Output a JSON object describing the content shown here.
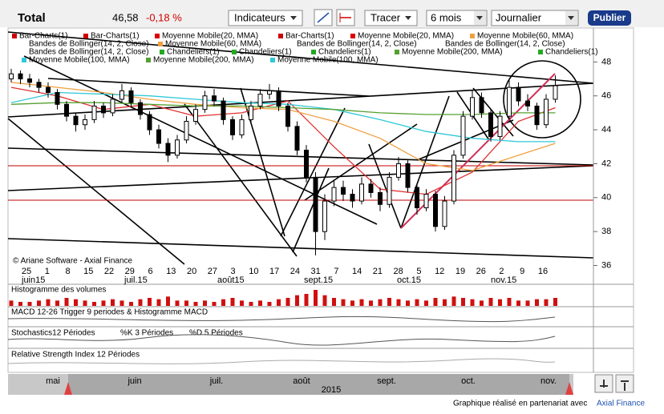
{
  "header": {
    "title": "Total",
    "price": "46,58",
    "change": "-0,18 %",
    "indicators": "Indicateurs",
    "draw": "Tracer",
    "period": "6 mois",
    "interval": "Journalier",
    "publish": "Publier"
  },
  "legend": [
    [
      {
        "text": "Bar-Charts(1)",
        "color": "#cc0000"
      },
      {
        "text": "Bar-Charts(1)",
        "color": "#cc0000"
      },
      {
        "text": "Moyenne Mobile(20, MMA)",
        "color": "#dd0000"
      },
      {
        "text": "Bar-Charts(1)",
        "color": "#cc0000"
      },
      {
        "text": "Moyenne Mobile(20, MMA)",
        "color": "#dd0000"
      },
      {
        "text": "Moyenne Mobile(60, MMA)",
        "color": "#f0a040"
      }
    ],
    [
      {
        "text": "Bandes de Bollinger(14, 2, Close)"
      },
      {
        "text": "Moyenne Mobile(60, MMA)",
        "color": "#f0a040"
      },
      {
        "text": "Bandes de Bollinger(14, 2, Close)"
      },
      {
        "text": "Bandes de Bollinger(14, 2, Close)"
      }
    ],
    [
      {
        "text": "Bandes de Bollinger(14, 2, Close)"
      },
      {
        "text": "Chandeliers(1)",
        "color": "#22aa22"
      },
      {
        "text": "Chandeliers(1)",
        "color": "#22aa22"
      },
      {
        "text": "Chandeliers(1)",
        "color": "#22aa22"
      },
      {
        "text": "Moyenne Mobile(200, MMA)",
        "color": "#55a030"
      },
      {
        "text": "Chandeliers(1)",
        "color": "#22aa22"
      }
    ],
    [
      {
        "text": "Moyenne Mobile(100, MMA)",
        "color": "#30c8d8"
      },
      {
        "text": "Moyenne Mobile(200, MMA)",
        "color": "#55a030"
      },
      {
        "text": "Moyenne Mobile(100, MMA)",
        "color": "#30c8d8"
      }
    ]
  ],
  "chart_data": {
    "type": "candlestick",
    "ylim": [
      35.6,
      50
    ],
    "yticks": [
      36,
      38,
      40,
      42,
      44,
      46,
      48
    ],
    "x_labels": [
      "25",
      "1",
      "8",
      "15",
      "22",
      "29",
      "6",
      "13",
      "20",
      "27",
      "3",
      "10",
      "17",
      "24",
      "31",
      "7",
      "14",
      "21",
      "28",
      "5",
      "12",
      "19",
      "26",
      "2",
      "9",
      "16"
    ],
    "month_labels": [
      "juin15",
      "juil.15",
      "août15",
      "sept.15",
      "oct.15",
      "nov.15"
    ],
    "candles": [
      [
        47.0,
        47.6,
        46.8,
        47.3
      ],
      [
        47.3,
        47.5,
        46.7,
        47.0
      ],
      [
        47.0,
        47.3,
        46.5,
        46.8
      ],
      [
        46.8,
        47.0,
        46.2,
        46.5
      ],
      [
        46.5,
        46.8,
        45.9,
        46.2
      ],
      [
        46.2,
        46.4,
        45.2,
        45.5
      ],
      [
        45.5,
        45.7,
        44.5,
        44.8
      ],
      [
        44.8,
        45.0,
        43.9,
        44.3
      ],
      [
        44.3,
        44.9,
        44.0,
        44.6
      ],
      [
        44.6,
        45.7,
        44.4,
        45.4
      ],
      [
        45.4,
        45.6,
        44.7,
        45.0
      ],
      [
        45.0,
        46.1,
        44.8,
        45.8
      ],
      [
        45.8,
        46.7,
        45.6,
        46.3
      ],
      [
        46.3,
        46.5,
        45.3,
        45.6
      ],
      [
        45.6,
        45.8,
        44.6,
        44.9
      ],
      [
        44.9,
        45.1,
        43.7,
        44.0
      ],
      [
        44.0,
        44.3,
        42.9,
        43.2
      ],
      [
        43.2,
        43.5,
        42.1,
        42.5
      ],
      [
        42.5,
        43.7,
        42.3,
        43.4
      ],
      [
        43.4,
        44.8,
        43.2,
        44.5
      ],
      [
        44.5,
        45.5,
        44.3,
        45.2
      ],
      [
        45.2,
        46.3,
        45.0,
        46.0
      ],
      [
        46.0,
        46.4,
        45.4,
        45.7
      ],
      [
        45.7,
        45.9,
        44.3,
        44.6
      ],
      [
        44.6,
        44.8,
        43.4,
        43.7
      ],
      [
        43.7,
        44.9,
        43.5,
        44.6
      ],
      [
        44.6,
        45.7,
        44.4,
        45.4
      ],
      [
        45.4,
        46.4,
        45.2,
        46.1
      ],
      [
        46.1,
        46.7,
        45.8,
        46.3
      ],
      [
        46.3,
        46.5,
        45.1,
        45.4
      ],
      [
        45.4,
        45.6,
        43.9,
        44.2
      ],
      [
        44.2,
        44.5,
        42.5,
        42.8
      ],
      [
        42.8,
        43.1,
        40.9,
        41.2
      ],
      [
        41.2,
        41.5,
        36.6,
        38.0
      ],
      [
        38.0,
        40.2,
        37.5,
        39.8
      ],
      [
        39.8,
        41.0,
        39.5,
        40.6
      ],
      [
        40.6,
        41.0,
        39.8,
        40.2
      ],
      [
        40.2,
        40.5,
        39.4,
        39.8
      ],
      [
        39.8,
        41.2,
        39.6,
        40.8
      ],
      [
        40.8,
        41.1,
        40.0,
        40.3
      ],
      [
        40.3,
        40.6,
        39.2,
        39.6
      ],
      [
        39.6,
        41.5,
        39.4,
        41.2
      ],
      [
        41.2,
        42.4,
        41.0,
        42.0
      ],
      [
        42.0,
        42.2,
        40.3,
        40.6
      ],
      [
        40.6,
        40.8,
        39.0,
        39.4
      ],
      [
        39.4,
        40.5,
        39.2,
        40.2
      ],
      [
        40.2,
        40.4,
        38.0,
        38.3
      ],
      [
        38.3,
        40.1,
        38.1,
        39.8
      ],
      [
        39.8,
        42.8,
        39.6,
        42.5
      ],
      [
        42.5,
        45.1,
        42.3,
        44.8
      ],
      [
        44.8,
        46.3,
        44.6,
        45.9
      ],
      [
        45.9,
        46.2,
        44.7,
        45.0
      ],
      [
        45.0,
        45.2,
        43.3,
        43.6
      ],
      [
        43.6,
        45.1,
        43.4,
        44.8
      ],
      [
        44.8,
        47.0,
        44.6,
        46.5
      ],
      [
        46.5,
        46.8,
        45.4,
        45.7
      ],
      [
        45.7,
        46.1,
        45.1,
        45.4
      ],
      [
        45.4,
        45.6,
        44.0,
        44.3
      ],
      [
        44.3,
        46.1,
        44.1,
        45.8
      ],
      [
        45.8,
        47.2,
        45.6,
        46.6
      ]
    ],
    "series": [
      {
        "name": "Moyenne Mobile(20, MMA)",
        "color": "#e03030",
        "values": [
          46.5,
          46.0,
          45.2,
          45.5,
          44.8,
          45.0,
          45.7,
          43.0,
          40.5,
          40.2,
          41.5,
          44.5,
          45.3
        ]
      },
      {
        "name": "Moyenne Mobile(60, MMA)",
        "color": "#f0a040",
        "values": [
          46.8,
          46.5,
          46.2,
          45.8,
          45.5,
          45.3,
          45.2,
          44.5,
          43.5,
          42.0,
          41.6,
          42.5,
          43.2
        ]
      },
      {
        "name": "Moyenne Mobile(100, MMA)",
        "color": "#30c8d8",
        "values": [
          45.6,
          46.2,
          46.1,
          46.0,
          45.8,
          45.6,
          45.5,
          45.2,
          44.6,
          43.9,
          43.5,
          43.3,
          43.3
        ]
      },
      {
        "name": "Moyenne Mobile(200, MMA)",
        "color": "#55a030",
        "values": [
          45.5,
          45.6,
          45.6,
          45.5,
          45.4,
          45.4,
          45.3,
          45.2,
          45.0,
          44.9,
          44.9,
          45.0,
          45.0
        ]
      }
    ],
    "volumes": [
      4,
      3,
      3,
      4,
      5,
      4,
      6,
      5,
      4,
      3,
      4,
      5,
      4,
      3,
      5,
      6,
      5,
      7,
      4,
      4,
      3,
      4,
      3,
      5,
      6,
      4,
      3,
      4,
      3,
      5,
      6,
      8,
      9,
      12,
      8,
      6,
      5,
      4,
      5,
      4,
      5,
      6,
      5,
      4,
      5,
      4,
      6,
      5,
      7,
      6,
      5,
      4,
      6,
      5,
      6,
      4,
      4,
      5,
      5,
      6
    ],
    "copyright": "© Ariane Software - Axial Finance"
  },
  "panels": {
    "volumes": "Histogramme des volumes",
    "macd": "MACD 12-26   Trigger 9 periodes & Histogramme MACD",
    "stoch": "Stochastics12 Périodes",
    "stoch_k": "%K 3 Périodes",
    "stoch_d": "%D 5 Périodes",
    "rsi": "Relative Strength Index 12 Périodes"
  },
  "navigator": {
    "months": [
      "mai",
      "juin",
      "juil.",
      "août",
      "sept.",
      "oct.",
      "nov."
    ],
    "year": "2015"
  },
  "footer": {
    "text": "Graphique réalisé en partenariat avec",
    "link": "Axial Finance"
  }
}
